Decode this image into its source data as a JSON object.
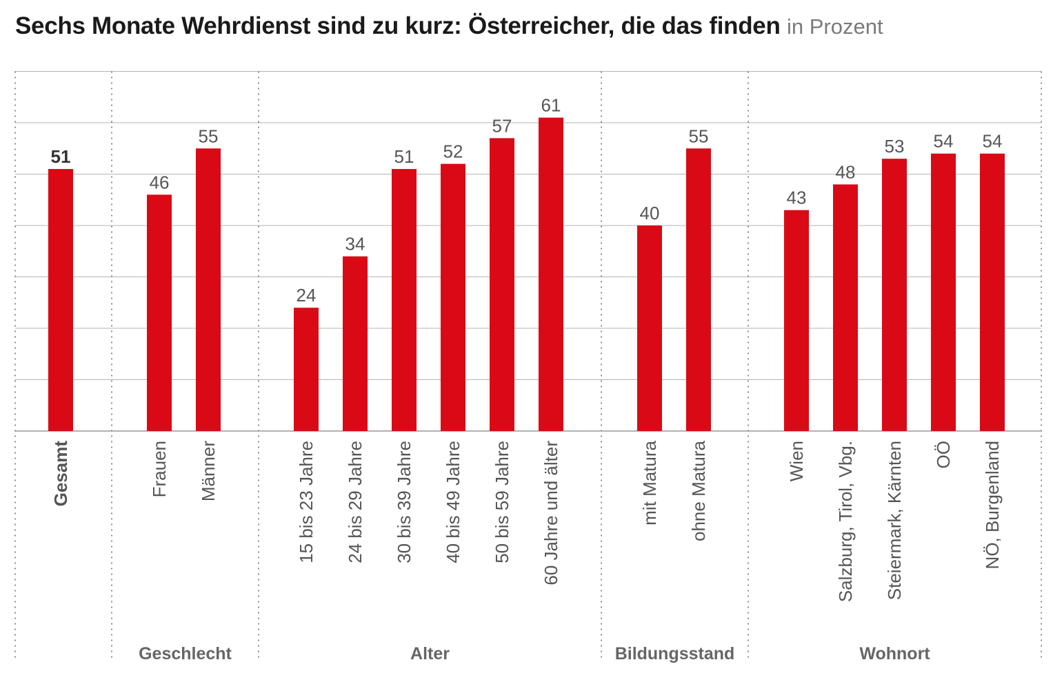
{
  "chart_data": {
    "type": "bar",
    "title": "Sechs Monate Wehrdienst sind zu kurz: Österreicher, die das finden",
    "subtitle": "in Prozent",
    "ylim": [
      0,
      70
    ],
    "grid": true,
    "color": "#d90a16",
    "groups": [
      {
        "name": "",
        "categories": [
          {
            "label": "Gesamt",
            "value": 51,
            "bold": true
          }
        ]
      },
      {
        "name": "Geschlecht",
        "categories": [
          {
            "label": "Frauen",
            "value": 46
          },
          {
            "label": "Männer",
            "value": 55
          }
        ]
      },
      {
        "name": "Alter",
        "categories": [
          {
            "label": "15 bis 23 Jahre",
            "value": 24
          },
          {
            "label": "24 bis 29 Jahre",
            "value": 34
          },
          {
            "label": "30 bis 39 Jahre",
            "value": 51
          },
          {
            "label": "40 bis 49 Jahre",
            "value": 52
          },
          {
            "label": "50 bis 59 Jahre",
            "value": 57
          },
          {
            "label": "60 Jahre und älter",
            "value": 61
          }
        ]
      },
      {
        "name": "Bildungsstand",
        "categories": [
          {
            "label": "mit Matura",
            "value": 40
          },
          {
            "label": "ohne Matura",
            "value": 55
          }
        ]
      },
      {
        "name": "Wohnort",
        "categories": [
          {
            "label": "Wien",
            "value": 43
          },
          {
            "label": "Salzburg, Tirol, Vbg.",
            "value": 48
          },
          {
            "label": "Steiermark, Kärnten",
            "value": 53
          },
          {
            "label": "OÖ",
            "value": 54
          },
          {
            "label": "NÖ, Burgenland",
            "value": 54
          }
        ]
      }
    ]
  }
}
